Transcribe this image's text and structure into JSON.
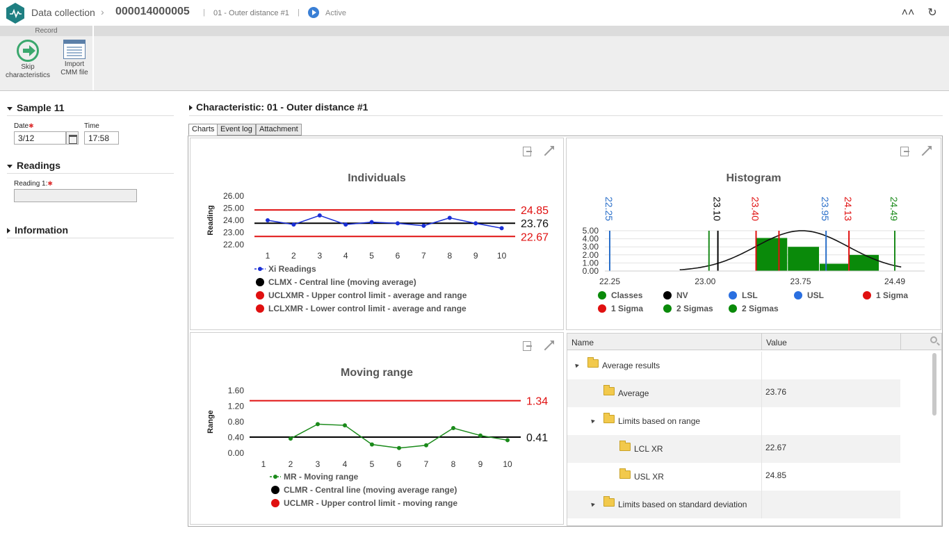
{
  "header": {
    "app_title": "Data collection",
    "record_id": "000014000005",
    "characteristic": "01 - Outer distance #1",
    "status": "Active",
    "collapse_label": "˄˄",
    "refresh_label": "↻"
  },
  "ribbon": {
    "group_label": "Record",
    "skip_label": "Skip characteristics",
    "import_label": "Import CMM file"
  },
  "left": {
    "sample_title": "Sample 11",
    "date_label": "Date",
    "date_value": "3/12",
    "time_label": "Time",
    "time_value": "17:58",
    "readings_title": "Readings",
    "reading1_label": "Reading 1:",
    "reading1_value": "",
    "information_title": "Information",
    "required_mark": "✱"
  },
  "main": {
    "title": "Characteristic: 01 - Outer distance #1",
    "tabs": [
      "Charts",
      "Event log",
      "Attachment"
    ]
  },
  "chart_data": [
    {
      "type": "line",
      "title": "Individuals",
      "ylabel": "Reading",
      "xlabel": "",
      "ylim": [
        22.0,
        26.0
      ],
      "yticks": [
        "26.00",
        "25.00",
        "24.00",
        "23.00",
        "22.00"
      ],
      "x": [
        1,
        2,
        3,
        4,
        5,
        6,
        7,
        8,
        9,
        10
      ],
      "series": [
        {
          "name": "Xi Readings",
          "color": "#1a2fd6",
          "values": [
            24.0,
            23.65,
            24.4,
            23.65,
            23.85,
            23.75,
            23.55,
            24.2,
            23.75,
            23.35
          ]
        }
      ],
      "lines": [
        {
          "name": "CLMX - Central line (moving average)",
          "color": "#000000",
          "value": 23.76,
          "label": "23.76"
        },
        {
          "name": "UCLXMR - Upper control limit - average and range",
          "color": "#e01010",
          "value": 24.85,
          "label": "24.85"
        },
        {
          "name": "LCLXMR - Lower control limit - average and range",
          "color": "#e01010",
          "value": 22.67,
          "label": "22.67"
        }
      ]
    },
    {
      "type": "bar",
      "title": "Histogram",
      "ylim": [
        0,
        5
      ],
      "yticks": [
        "5.00",
        "4.00",
        "3.00",
        "2.00",
        "1.00",
        "0.00"
      ],
      "xlim": [
        22.25,
        24.49
      ],
      "xticks": [
        "22.25",
        "23.00",
        "23.75",
        "24.49"
      ],
      "bins": [
        {
          "from": 23.4,
          "to": 23.65,
          "value": 4.1
        },
        {
          "from": 23.65,
          "to": 23.9,
          "value": 3.0
        },
        {
          "from": 23.9,
          "to": 24.13,
          "value": 0.9
        },
        {
          "from": 24.13,
          "to": 24.37,
          "value": 2.0
        }
      ],
      "curve": {
        "mean": 23.76,
        "sigma": 0.363,
        "peak": 5.0
      },
      "markers": [
        {
          "value": 22.25,
          "label": "22.25",
          "color": "#2a6fc9"
        },
        {
          "value": 23.1,
          "label": "23.10",
          "color": "#000000"
        },
        {
          "value": 23.4,
          "label": "23.40",
          "color": "#e01010"
        },
        {
          "value": 23.95,
          "label": "23.95",
          "color": "#2a6fc9"
        },
        {
          "value": 24.13,
          "label": "24.13",
          "color": "#e01010"
        },
        {
          "value": 24.49,
          "label": "24.49",
          "color": "#1a8a1a"
        }
      ],
      "extra_lines": [
        {
          "value": 23.03,
          "color": "#1a8a1a"
        },
        {
          "value": 23.58,
          "color": "#e01010"
        }
      ],
      "legend": [
        {
          "name": "Classes",
          "color": "#0a8a0a"
        },
        {
          "name": "NV",
          "color": "#000000"
        },
        {
          "name": "LSL",
          "color": "#2a6fe0"
        },
        {
          "name": "USL",
          "color": "#2a6fe0"
        },
        {
          "name": "1 Sigma",
          "color": "#e01010"
        },
        {
          "name": "1 Sigma",
          "color": "#e01010"
        },
        {
          "name": "2 Sigmas",
          "color": "#0a8a0a"
        },
        {
          "name": "2 Sigmas",
          "color": "#0a8a0a"
        }
      ]
    },
    {
      "type": "line",
      "title": "Moving range",
      "ylabel": "Range",
      "xlabel": "",
      "ylim": [
        0.0,
        1.6
      ],
      "yticks": [
        "1.60",
        "1.20",
        "0.80",
        "0.40",
        "0.00"
      ],
      "x": [
        1,
        2,
        3,
        4,
        5,
        6,
        7,
        8,
        9,
        10
      ],
      "series": [
        {
          "name": "MR - Moving range",
          "color": "#1a8a1a",
          "values": [
            null,
            0.37,
            0.74,
            0.71,
            0.22,
            0.13,
            0.2,
            0.64,
            0.45,
            0.33
          ]
        }
      ],
      "lines": [
        {
          "name": "CLMR - Central line (moving average range)",
          "color": "#000000",
          "value": 0.41,
          "label": "0.41"
        },
        {
          "name": "UCLMR - Upper control limit - moving range",
          "color": "#e01010",
          "value": 1.34,
          "label": "1.34"
        }
      ]
    }
  ],
  "results": {
    "columns": [
      "Name",
      "Value"
    ],
    "rows": [
      {
        "name": "Average results",
        "value": "",
        "level": 0,
        "expandable": true
      },
      {
        "name": "Average",
        "value": "23.76",
        "level": 1,
        "expandable": false
      },
      {
        "name": "Limits based on range",
        "value": "",
        "level": 1,
        "expandable": true
      },
      {
        "name": "LCL XR",
        "value": "22.67",
        "level": 2,
        "expandable": false
      },
      {
        "name": "USL XR",
        "value": "24.85",
        "level": 2,
        "expandable": false
      },
      {
        "name": "Limits based on standard deviation",
        "value": "",
        "level": 1,
        "expandable": true
      }
    ]
  }
}
